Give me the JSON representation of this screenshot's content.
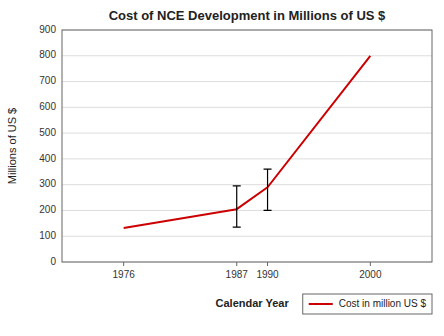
{
  "chart_data": {
    "type": "line",
    "title": "Cost of NCE Development in Millions of US $",
    "xlabel": "Calendar Year",
    "ylabel": "Millions of US $",
    "x": [
      1976,
      1987,
      1990,
      2000
    ],
    "series": [
      {
        "name": "Cost in million US $",
        "color": "#cc0000",
        "values": [
          132,
          205,
          290,
          800
        ],
        "yerr_lower": [
          0,
          70,
          90,
          0
        ],
        "yerr_upper": [
          0,
          90,
          70,
          0
        ]
      }
    ],
    "xlim": [
      1970,
      2006
    ],
    "ylim": [
      0,
      900
    ],
    "xticks": [
      1976,
      1987,
      1990,
      2000
    ],
    "yticks": [
      0,
      100,
      200,
      300,
      400,
      500,
      600,
      700,
      800,
      900
    ],
    "grid": true,
    "legend": "bottom"
  }
}
